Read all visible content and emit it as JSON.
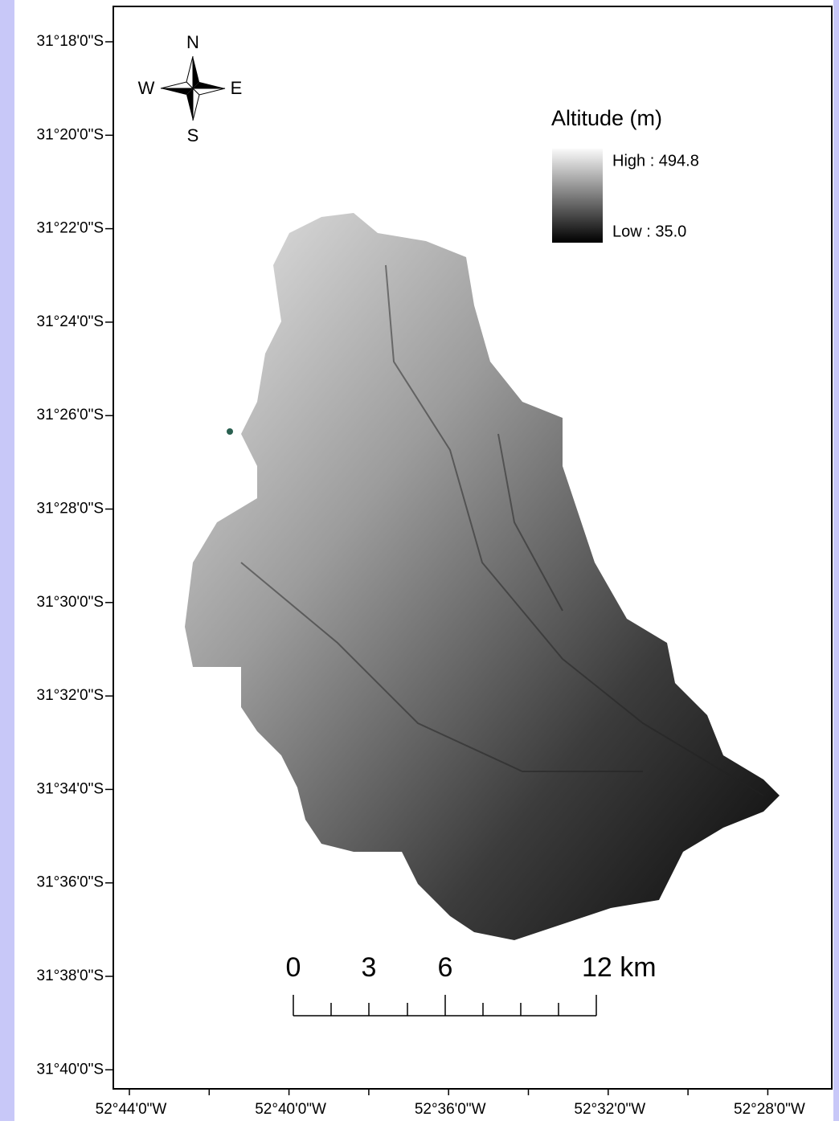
{
  "map": {
    "y_labels": [
      "31°18'0\"S",
      "31°20'0\"S",
      "31°22'0\"S",
      "31°24'0\"S",
      "31°26'0\"S",
      "31°28'0\"S",
      "31°30'0\"S",
      "31°32'0\"S",
      "31°34'0\"S",
      "31°36'0\"S",
      "31°38'0\"S",
      "31°40'0\"S"
    ],
    "x_labels": [
      "52°44'0\"W",
      "52°40'0\"W",
      "52°36'0\"W",
      "52°32'0\"W",
      "52°28'0\"W"
    ],
    "legend": {
      "title": "Altitude (m)",
      "high": "High : 494.8",
      "low": "Low : 35.0"
    },
    "scale_bar": {
      "labels": [
        "0",
        "3",
        "6",
        "12 km"
      ]
    },
    "compass": {
      "n": "N",
      "e": "E",
      "s": "S",
      "w": "W"
    }
  }
}
